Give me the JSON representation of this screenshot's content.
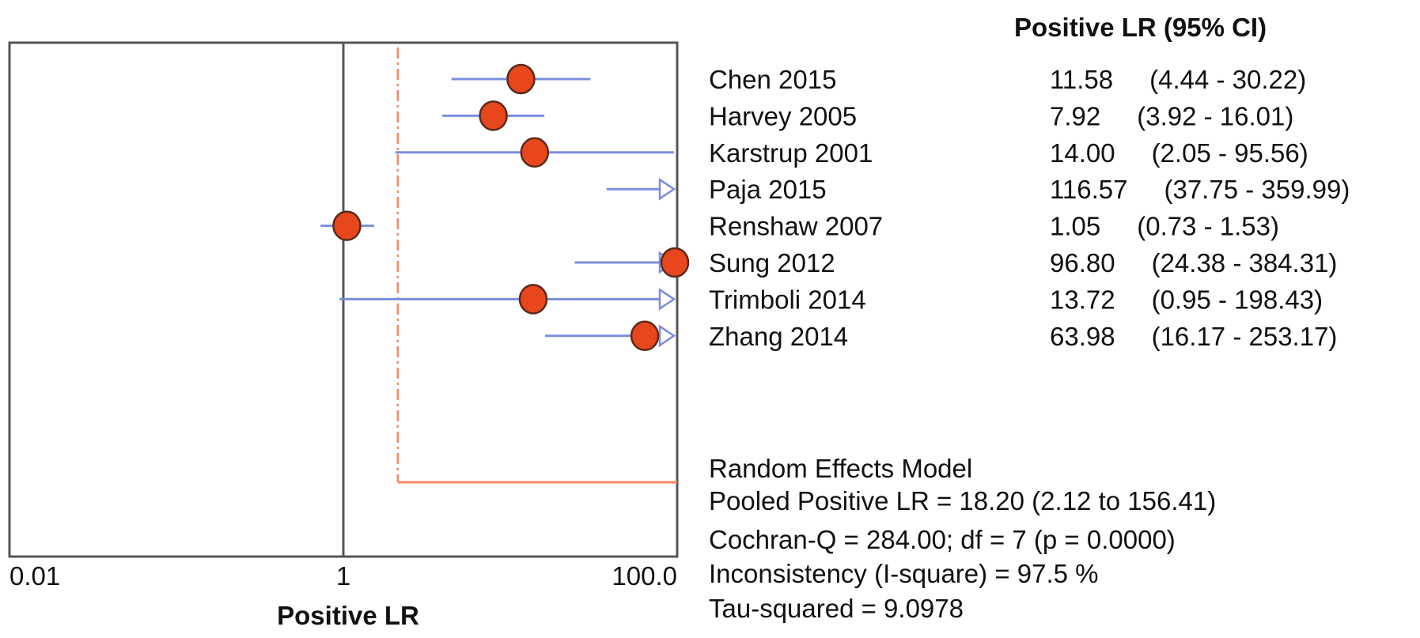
{
  "chart_data": {
    "type": "forest",
    "x_scale": "log",
    "xlim": [
      0.01,
      100
    ],
    "xlabel": "Positive LR",
    "x_ticks": [
      "0.01",
      "1",
      "100.0"
    ],
    "x_tick_values": [
      0.01,
      1,
      100
    ],
    "reference_line": 1,
    "table_header": "Positive LR (95% CI)",
    "studies": [
      {
        "name": "Chen 2015",
        "value": 11.58,
        "lower": 4.44,
        "upper": 30.22,
        "value_label": "11.58",
        "ci_label": "(4.44 - 30.22)"
      },
      {
        "name": "Harvey 2005",
        "value": 7.92,
        "lower": 3.92,
        "upper": 16.01,
        "value_label": "7.92",
        "ci_label": "(3.92 - 16.01)"
      },
      {
        "name": "Karstrup 2001",
        "value": 14.0,
        "lower": 2.05,
        "upper": 95.56,
        "value_label": "14.00",
        "ci_label": "(2.05 - 95.56)"
      },
      {
        "name": "Paja 2015",
        "value": 116.57,
        "lower": 37.75,
        "upper": 359.99,
        "value_label": "116.57",
        "ci_label": "(37.75 - 359.99)"
      },
      {
        "name": "Renshaw 2007",
        "value": 1.05,
        "lower": 0.73,
        "upper": 1.53,
        "value_label": "1.05",
        "ci_label": "(0.73 - 1.53)"
      },
      {
        "name": "Sung 2012",
        "value": 96.8,
        "lower": 24.38,
        "upper": 384.31,
        "value_label": "96.80",
        "ci_label": "(24.38 - 384.31)"
      },
      {
        "name": "Trimboli 2014",
        "value": 13.72,
        "lower": 0.95,
        "upper": 198.43,
        "value_label": "13.72",
        "ci_label": "(0.95 - 198.43)"
      },
      {
        "name": "Zhang 2014",
        "value": 63.98,
        "lower": 16.17,
        "upper": 253.17,
        "value_label": "63.98",
        "ci_label": "(16.17 - 253.17)"
      }
    ],
    "pooled": {
      "value": 18.2,
      "lower": 2.12,
      "upper": 156.41,
      "line_at": 2.12
    },
    "summary": [
      "Random Effects Model",
      "Pooled Positive LR = 18.20 (2.12 to 156.41)",
      "Cochran-Q = 284.00; df =  7 (p = 0.0000)",
      "Inconsistency (I-square) = 97.5 %",
      "Tau-squared = 9.0978"
    ],
    "colors": {
      "marker": "#e8461c",
      "marker_outline": "#5a2a1a",
      "ci": "#7a8ede",
      "pooled_line": "#f5875f",
      "frame": "#555555"
    }
  }
}
